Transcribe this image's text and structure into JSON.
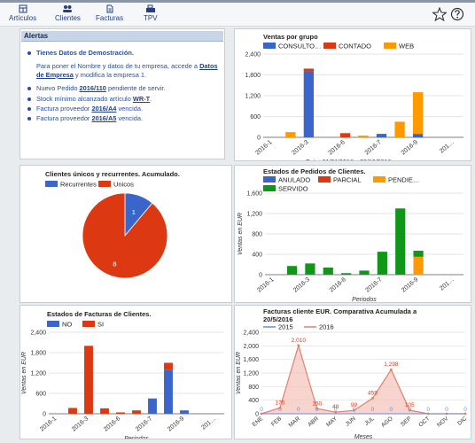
{
  "toolbar": {
    "items": [
      {
        "label": "Artículos",
        "icon": "grid-icon"
      },
      {
        "label": "Clientes",
        "icon": "users-icon"
      },
      {
        "label": "Facturas",
        "icon": "document-icon"
      },
      {
        "label": "TPV",
        "icon": "register-icon"
      }
    ],
    "right_icons": [
      "star-icon",
      "help-icon"
    ]
  },
  "alerts": {
    "title": "Alertas",
    "demo_title": "Tienes Datos de Demostración.",
    "demo_text_1": "Para poner el Nombre y datos de tu empresa, accede a",
    "demo_link": "Datos de Empresa",
    "demo_text_2": "y modifica la empresa 1.",
    "order_prefix": "Nuevo Pedido",
    "order_link": "2016/110",
    "order_suffix": "pendiente de servir.",
    "stock_prefix": "Stock mínimo alcanzado artículo",
    "stock_link": "WR-T",
    "stock_suffix": ".",
    "inv1_prefix": "Factura proveedor",
    "inv1_link": "2016/A4",
    "inv1_suffix": "vencida.",
    "inv2_prefix": "Factura proveedor",
    "inv2_link": "2016/A5",
    "inv2_suffix": "vencida."
  },
  "colors": {
    "blue": "#3a66cc",
    "red": "#dc3912",
    "orange": "#ff9900",
    "green": "#109618",
    "area_line": "#e07f6e",
    "area_fill": "#f3c2b8",
    "link": "#1f3f8a"
  },
  "chart_data": [
    {
      "id": "ventas-grupo",
      "type": "bar",
      "stacked": true,
      "title": "Ventas por grupo",
      "legend": [
        "CONSULTO…",
        "CONTADO",
        "WEB"
      ],
      "legend_position": "top",
      "categories": [
        "2016-1",
        "2016-2",
        "2016-3",
        "2016-4",
        "2016-5",
        "2016-6",
        "2016-7",
        "2016-8",
        "2016-9",
        "2016-10",
        "2016-11"
      ],
      "tick_labels": [
        "2016-1",
        "2016-3",
        "2016-6",
        "2016-7",
        "2016-9",
        "201…"
      ],
      "series": [
        {
          "name": "CONSULTO…",
          "values": [
            0,
            0,
            1900,
            0,
            0,
            0,
            100,
            0,
            100,
            0,
            0
          ]
        },
        {
          "name": "CONTADO",
          "values": [
            0,
            0,
            80,
            0,
            120,
            0,
            0,
            0,
            0,
            0,
            0
          ]
        },
        {
          "name": "WEB",
          "values": [
            0,
            150,
            0,
            0,
            0,
            50,
            0,
            450,
            1200,
            0,
            0
          ]
        }
      ],
      "ylim": [
        0,
        2400
      ],
      "y_ticks": [
        "0",
        "600",
        "1,200",
        "1,800",
        "2,400"
      ],
      "xlabel": "Entre 01/01/2016 y 30/12/2016 por meses",
      "ylabel": ""
    },
    {
      "id": "clientes-unicos",
      "type": "pie",
      "title": "Clientes únicos y recurrentes. Acumulado.",
      "legend": [
        "Recurrentes",
        "Unicos"
      ],
      "legend_position": "top",
      "slices": [
        {
          "name": "Recurrentes",
          "value": 1
        },
        {
          "name": "Unicos",
          "value": 8
        }
      ]
    },
    {
      "id": "estados-pedidos",
      "type": "bar",
      "stacked": true,
      "title": "Estados de Pedidos de Clientes.",
      "legend": [
        "ANULADO",
        "PARCIAL",
        "PENDIE…",
        "SERVIDO"
      ],
      "legend_position": "top",
      "categories": [
        "2016-1",
        "2016-2",
        "2016-3",
        "2016-4",
        "2016-5",
        "2016-6",
        "2016-7",
        "2016-8",
        "2016-9",
        "2016-10",
        "2016-11"
      ],
      "tick_labels": [
        "2016-1",
        "2016-3",
        "2016-6",
        "2016-7",
        "2016-9",
        "201…"
      ],
      "series": [
        {
          "name": "ANULADO",
          "values": [
            0,
            0,
            0,
            0,
            0,
            0,
            0,
            0,
            0,
            0,
            0
          ]
        },
        {
          "name": "PARCIAL",
          "values": [
            0,
            0,
            0,
            0,
            0,
            0,
            0,
            0,
            0,
            0,
            0
          ]
        },
        {
          "name": "PENDIE…",
          "values": [
            0,
            0,
            0,
            0,
            0,
            0,
            0,
            0,
            350,
            0,
            0
          ]
        },
        {
          "name": "SERVIDO",
          "values": [
            0,
            170,
            220,
            140,
            30,
            80,
            450,
            1300,
            120,
            0,
            0
          ]
        }
      ],
      "ylim": [
        0,
        1600
      ],
      "y_ticks": [
        "0",
        "400",
        "800",
        "1,200",
        "1,600"
      ],
      "xlabel": "Periodos",
      "ylabel": "Ventas en EUR"
    },
    {
      "id": "estados-facturas",
      "type": "bar",
      "stacked": true,
      "title": "Estados de Facturas de Clientes.",
      "legend": [
        "NO",
        "SI"
      ],
      "legend_position": "top",
      "categories": [
        "2016-1",
        "2016-2",
        "2016-3",
        "2016-4",
        "2016-5",
        "2016-6",
        "2016-7",
        "2016-8",
        "2016-9",
        "2016-10",
        "2016-11"
      ],
      "tick_labels": [
        "2016-1",
        "2016-3",
        "2016-6",
        "2016-7",
        "2016-9",
        "201…"
      ],
      "series": [
        {
          "name": "NO",
          "values": [
            0,
            0,
            0,
            0,
            0,
            0,
            450,
            1300,
            100,
            0,
            0
          ]
        },
        {
          "name": "SI",
          "values": [
            0,
            170,
            2000,
            160,
            40,
            100,
            0,
            200,
            0,
            0,
            0
          ]
        }
      ],
      "ylim": [
        0,
        2400
      ],
      "y_ticks": [
        "0",
        "600",
        "1,200",
        "1,800",
        "2,400"
      ],
      "xlabel": "Periodos",
      "ylabel": "Ventas en EUR"
    },
    {
      "id": "facturas-comparativa",
      "type": "area",
      "title_line1": "Facturas cliente EUR. Comparativa Acumulada a",
      "title_line2": "20/5/2016",
      "legend": [
        "2015",
        "2016"
      ],
      "legend_position": "top",
      "categories": [
        "ENE",
        "FEB",
        "MAR",
        "ABR",
        "MAY",
        "JUN",
        "JUL",
        "AGO",
        "SEP",
        "OCT",
        "NOV",
        "DIC"
      ],
      "series": [
        {
          "name": "2015",
          "values": [
            0,
            0,
            0,
            0,
            0,
            0,
            0,
            0,
            0,
            0,
            0,
            0
          ]
        },
        {
          "name": "2016",
          "values": [
            0,
            175,
            2010,
            150,
            48,
            99,
            459,
            1298,
            105,
            0,
            0,
            0
          ]
        }
      ],
      "data_labels_2016": [
        "0",
        "175",
        "2,010",
        "150",
        "48",
        "99",
        "459",
        "1,298",
        "105",
        "0",
        "0",
        "0"
      ],
      "ylim": [
        0,
        2400
      ],
      "y_ticks": [
        "0",
        "400",
        "800",
        "1,200",
        "1,600",
        "2,000",
        "2,400"
      ],
      "xlabel": "Meses",
      "ylabel": "Ventas en EUR"
    }
  ]
}
